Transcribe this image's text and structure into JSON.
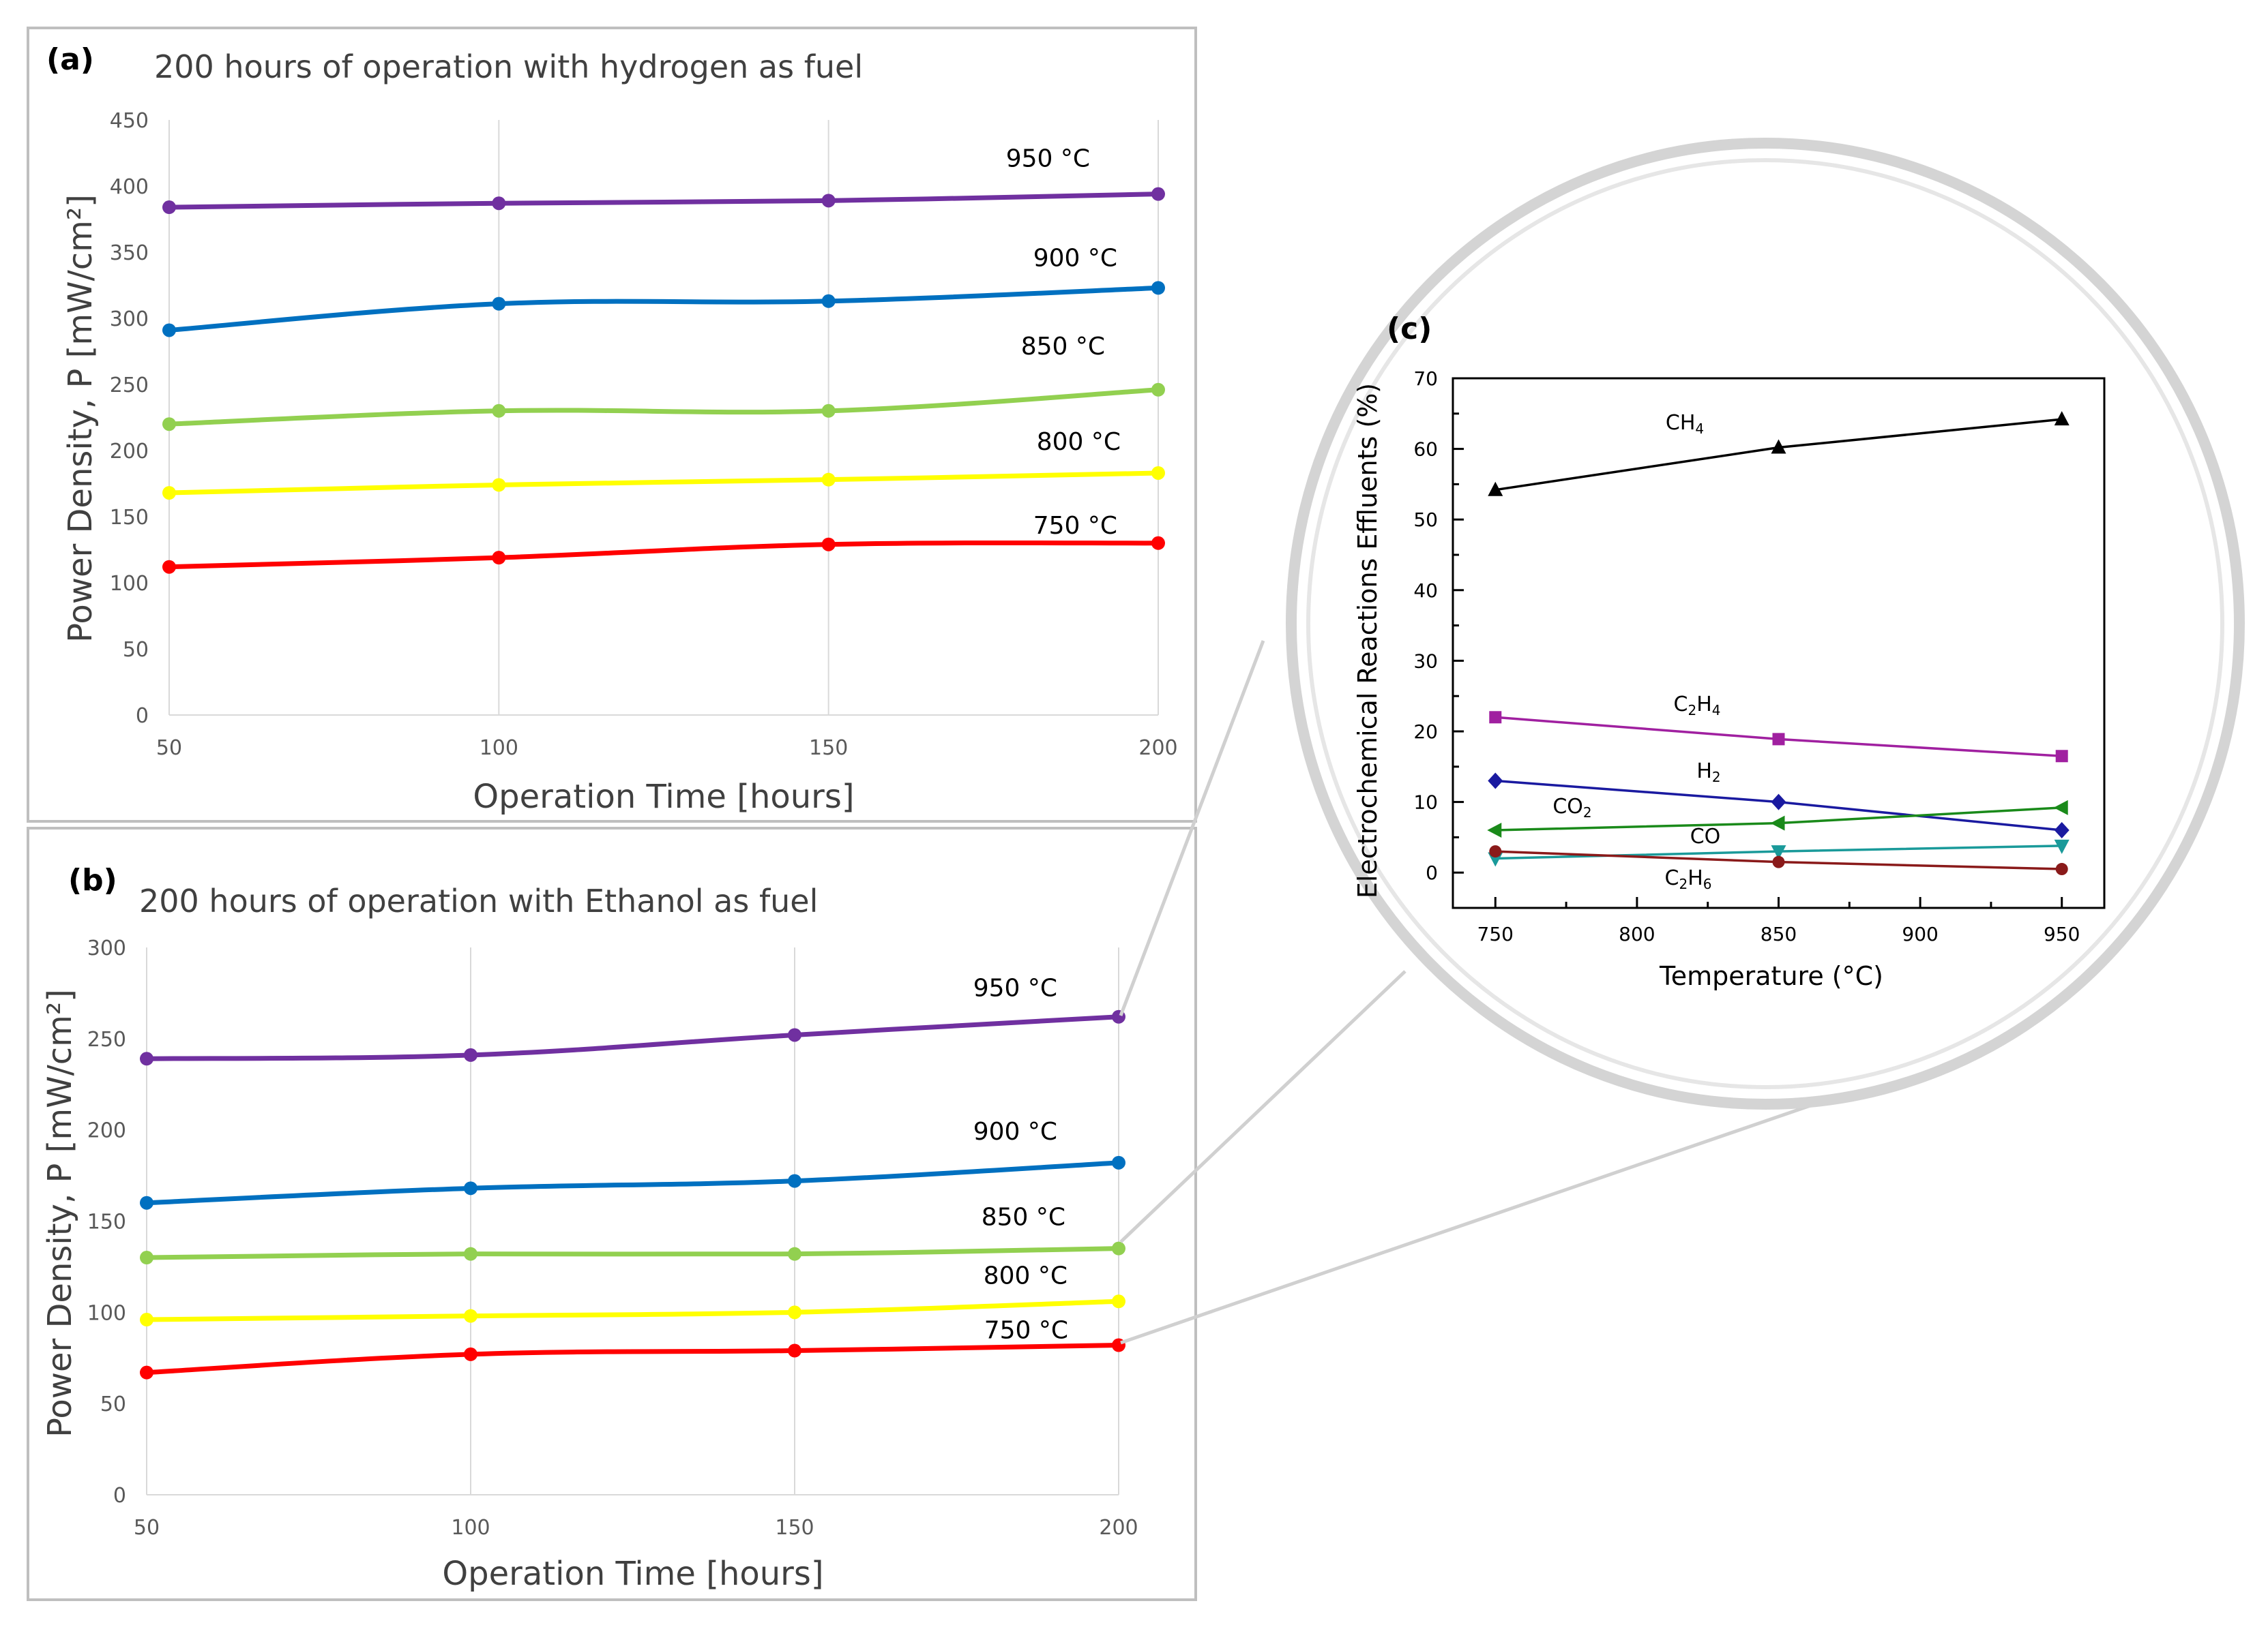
{
  "chart_data": [
    {
      "id": "a",
      "type": "line",
      "panel_label": "(a)",
      "title": "200 hours of operation with hydrogen as fuel",
      "xlabel": "Operation Time [hours]",
      "ylabel": "Power Density, P [mW/cm²]",
      "x": [
        50,
        100,
        150,
        200
      ],
      "xlim": [
        50,
        200
      ],
      "ylim": [
        0,
        450
      ],
      "xticks": [
        50,
        100,
        150,
        200
      ],
      "yticks": [
        0,
        50,
        100,
        150,
        200,
        250,
        300,
        350,
        400,
        450
      ],
      "grid": "vertical",
      "series": [
        {
          "name": "950 °C",
          "color": "#7030A0",
          "values": [
            384,
            387,
            389,
            394
          ]
        },
        {
          "name": "900 °C",
          "color": "#0070C0",
          "values": [
            291,
            311,
            313,
            323
          ]
        },
        {
          "name": "850 °C",
          "color": "#92D050",
          "values": [
            220,
            230,
            230,
            246
          ]
        },
        {
          "name": "800 °C",
          "color": "#FFFF00",
          "values": [
            168,
            174,
            178,
            183
          ]
        },
        {
          "name": "750 °C",
          "color": "#FF0000",
          "values": [
            112,
            119,
            129,
            130
          ]
        }
      ]
    },
    {
      "id": "b",
      "type": "line",
      "panel_label": "(b)",
      "title": "200 hours of operation with Ethanol as fuel",
      "xlabel": "Operation Time [hours]",
      "ylabel": "Power Density, P [mW/cm²]",
      "x": [
        50,
        100,
        150,
        200
      ],
      "xlim": [
        50,
        200
      ],
      "ylim": [
        0,
        300
      ],
      "xticks": [
        50,
        100,
        150,
        200
      ],
      "yticks": [
        0,
        50,
        100,
        150,
        200,
        250,
        300
      ],
      "grid": "vertical",
      "series": [
        {
          "name": "950 °C",
          "color": "#7030A0",
          "values": [
            239,
            241,
            252,
            262
          ]
        },
        {
          "name": "900 °C",
          "color": "#0070C0",
          "values": [
            160,
            168,
            172,
            182
          ]
        },
        {
          "name": "850 °C",
          "color": "#92D050",
          "values": [
            130,
            132,
            132,
            135
          ]
        },
        {
          "name": "800 °C",
          "color": "#FFFF00",
          "values": [
            96,
            98,
            100,
            106
          ]
        },
        {
          "name": "750 °C",
          "color": "#FF0000",
          "values": [
            67,
            77,
            79,
            82
          ]
        }
      ]
    },
    {
      "id": "c",
      "type": "line",
      "panel_label": "(c)",
      "xlabel": "Temperature (°C)",
      "ylabel": "Electrochemical Reactions Effluents (%)",
      "x": [
        750,
        850,
        950
      ],
      "xlim": [
        735,
        965
      ],
      "ylim": [
        -5,
        70
      ],
      "xticks": [
        750,
        800,
        850,
        900,
        950
      ],
      "yticks": [
        0,
        10,
        20,
        30,
        40,
        50,
        60,
        70
      ],
      "grid": "none",
      "series": [
        {
          "name": "CH4",
          "name_parts": [
            "CH",
            "4"
          ],
          "color": "#000000",
          "marker": "triangle-up",
          "values": [
            54.2,
            60.2,
            64.2
          ]
        },
        {
          "name": "C2H4",
          "name_parts": [
            "C",
            "2",
            "H",
            "4"
          ],
          "color": "#A020A0",
          "marker": "square",
          "values": [
            22.0,
            18.9,
            16.5
          ]
        },
        {
          "name": "H2",
          "name_parts": [
            "H",
            "2"
          ],
          "color": "#1A1AA0",
          "marker": "diamond",
          "values": [
            13.0,
            10.0,
            6.0
          ]
        },
        {
          "name": "CO2",
          "name_parts": [
            "CO",
            "2"
          ],
          "color": "#1A8A1A",
          "marker": "triangle-left",
          "values": [
            6.0,
            7.0,
            9.2
          ]
        },
        {
          "name": "CO",
          "name_parts": [
            "CO"
          ],
          "color": "#1A9A9A",
          "marker": "triangle-down",
          "values": [
            2.0,
            3.0,
            3.8
          ]
        },
        {
          "name": "C2H6",
          "name_parts": [
            "C",
            "2",
            "H",
            "6"
          ],
          "color": "#8A1A1A",
          "marker": "circle",
          "values": [
            3.0,
            1.5,
            0.5
          ]
        }
      ]
    }
  ]
}
